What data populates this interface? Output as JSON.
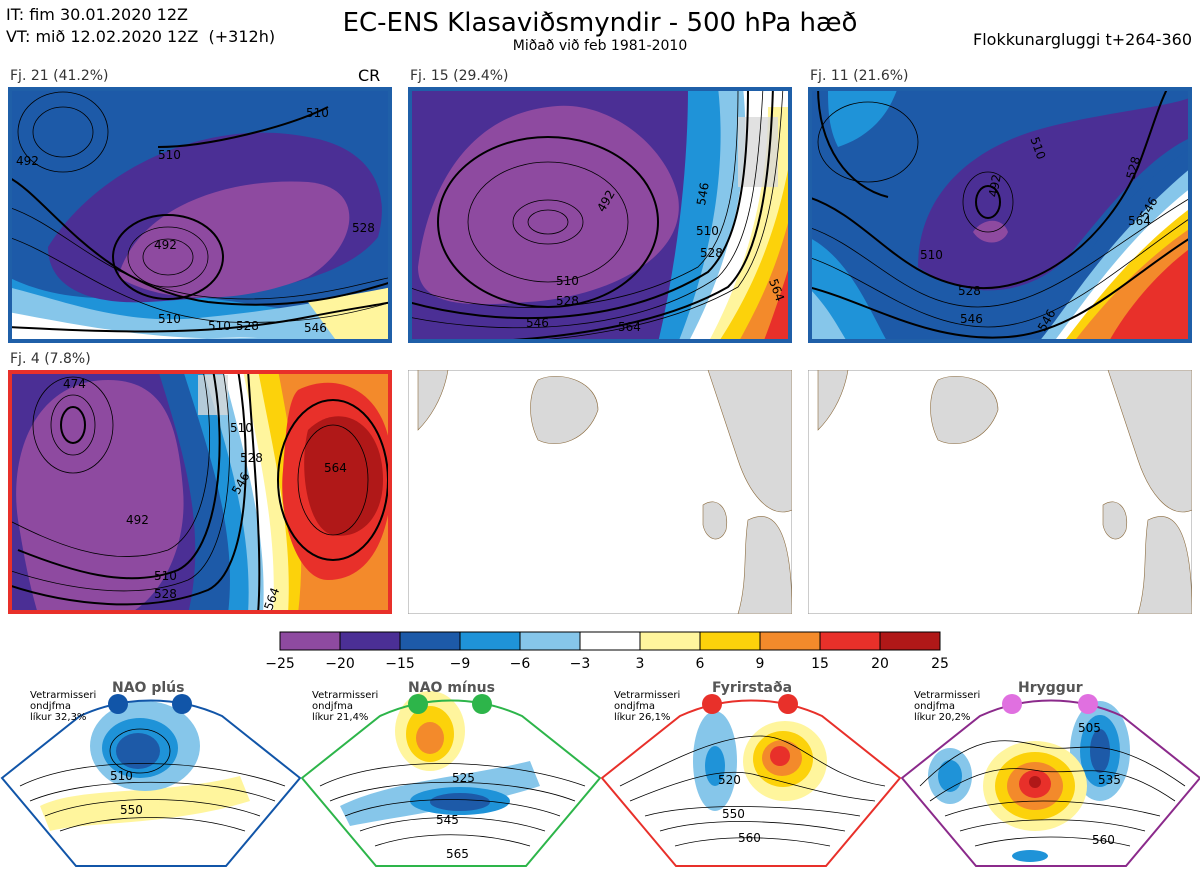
{
  "header": {
    "it_line": "IT: fim 30.01.2020 12Z",
    "vt_line": "VT: mið 12.02.2020 12Z  (+312h)",
    "title": "EC-ENS Klasaviðsmyndir - 500 hPa hæð",
    "subtitle": "Miðað við feb 1981-2010",
    "window": "Flokkunargluggi t+264-360"
  },
  "clusters": [
    {
      "label": "Fj. 21 (41.2%)",
      "frame_color": "#1f5fa8",
      "tag": "CR",
      "contour_labels": [
        "492",
        "510",
        "510",
        "492",
        "510",
        "528",
        "510",
        "528",
        "546"
      ]
    },
    {
      "label": "Fj. 15 (29.4%)",
      "frame_color": "#1f5fa8",
      "tag": "",
      "contour_labels": [
        "492",
        "510",
        "528",
        "546",
        "510",
        "528",
        "546",
        "564",
        "564"
      ]
    },
    {
      "label": "Fj. 11 (21.6%)",
      "frame_color": "#1f5fa8",
      "tag": "",
      "contour_labels": [
        "510",
        "492",
        "528",
        "546",
        "564",
        "510",
        "528",
        "546",
        "546"
      ]
    },
    {
      "label": "Fj. 4 (7.8%)",
      "frame_color": "#e8302a",
      "tag": "",
      "contour_labels": [
        "474",
        "510",
        "528",
        "546",
        "564",
        "492",
        "510",
        "528",
        "564"
      ]
    }
  ],
  "colorbar": {
    "ticks": [
      "−25",
      "−20",
      "−15",
      "−9",
      "−6",
      "−3",
      "3",
      "6",
      "9",
      "15",
      "20",
      "25"
    ],
    "colors": [
      "#8e4aa0",
      "#4b2f95",
      "#1d5aa8",
      "#1f93d8",
      "#86c6ea",
      "#ffffff",
      "#fff59d",
      "#fcd20b",
      "#f38a2b",
      "#e8302a",
      "#b01818"
    ]
  },
  "regimes": [
    {
      "name": "NAO plús",
      "line1": "Vetrarmisseri",
      "line2": "ondjfma",
      "line3": "líkur 32,3%",
      "color": "#1155a8",
      "labels": [
        "510",
        "550"
      ]
    },
    {
      "name": "NAO mínus",
      "line1": "Vetrarmisseri",
      "line2": "ondjfma",
      "line3": "líkur 21,4%",
      "color": "#2db54a",
      "labels": [
        "525",
        "545",
        "565"
      ]
    },
    {
      "name": "Fyrirstaða",
      "line1": "Vetrarmisseri",
      "line2": "ondjfma",
      "line3": "líkur 26,1%",
      "color": "#e8302a",
      "labels": [
        "520",
        "550",
        "560"
      ]
    },
    {
      "name": "Hryggur",
      "line1": "Vetrarmisseri",
      "line2": "ondjfma",
      "line3": "líkur 20,2%",
      "color": "#e070e0",
      "labels": [
        "505",
        "535",
        "560"
      ]
    }
  ],
  "colors": {
    "ocean_blue": "#1d5aa8",
    "land": "#d9d9d9",
    "coast": "#8b6b3e"
  }
}
